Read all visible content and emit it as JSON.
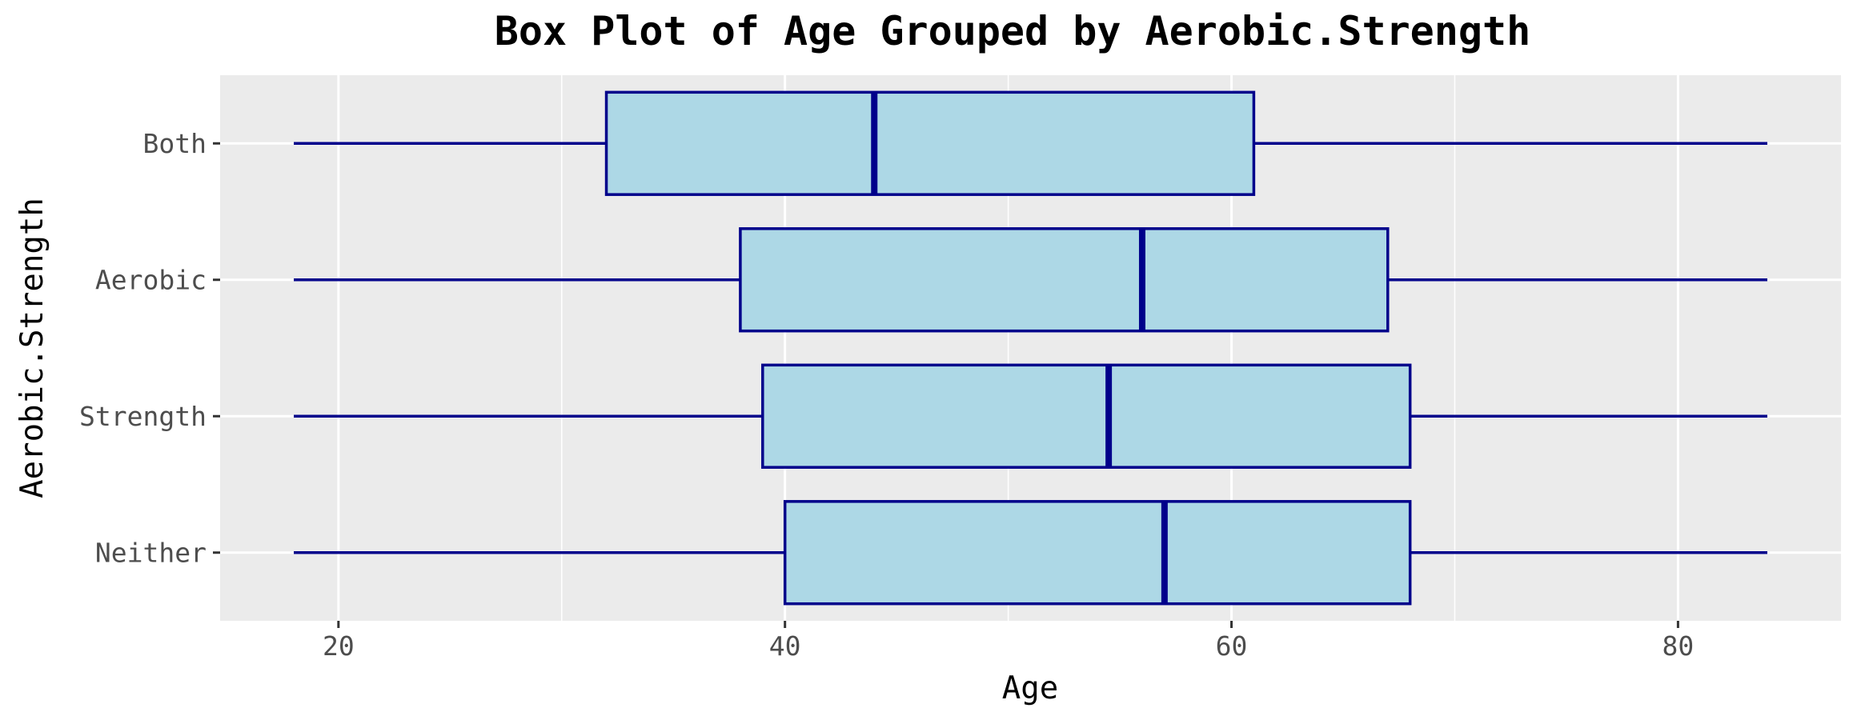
{
  "chart_data": {
    "type": "boxplot",
    "orientation": "horizontal",
    "title": "Box Plot of Age Grouped by Aerobic.Strength",
    "xlabel": "Age",
    "ylabel": "Aerobic.Strength",
    "xlim": [
      14.7,
      87.3
    ],
    "xticks": [
      20,
      40,
      60,
      80
    ],
    "xtick_labels": [
      "20",
      "40",
      "60",
      "80"
    ],
    "grid": true,
    "categories": [
      "Both",
      "Aerobic",
      "Strength",
      "Neither"
    ],
    "boxes": [
      {
        "category": "Both",
        "whisker_low": 18,
        "q1": 32,
        "median": 44,
        "q3": 61,
        "whisker_high": 84
      },
      {
        "category": "Aerobic",
        "whisker_low": 18,
        "q1": 38,
        "median": 56,
        "q3": 67,
        "whisker_high": 84
      },
      {
        "category": "Strength",
        "whisker_low": 18,
        "q1": 39,
        "median": 54.5,
        "q3": 68,
        "whisker_high": 84
      },
      {
        "category": "Neither",
        "whisker_low": 18,
        "q1": 40,
        "median": 57,
        "q3": 68,
        "whisker_high": 84
      }
    ],
    "colors": {
      "panel_background": "#ebebeb",
      "gridline": "#ffffff",
      "box_fill": "#add8e6",
      "box_stroke": "#00008b",
      "tick_label": "#4d4d4d"
    }
  }
}
